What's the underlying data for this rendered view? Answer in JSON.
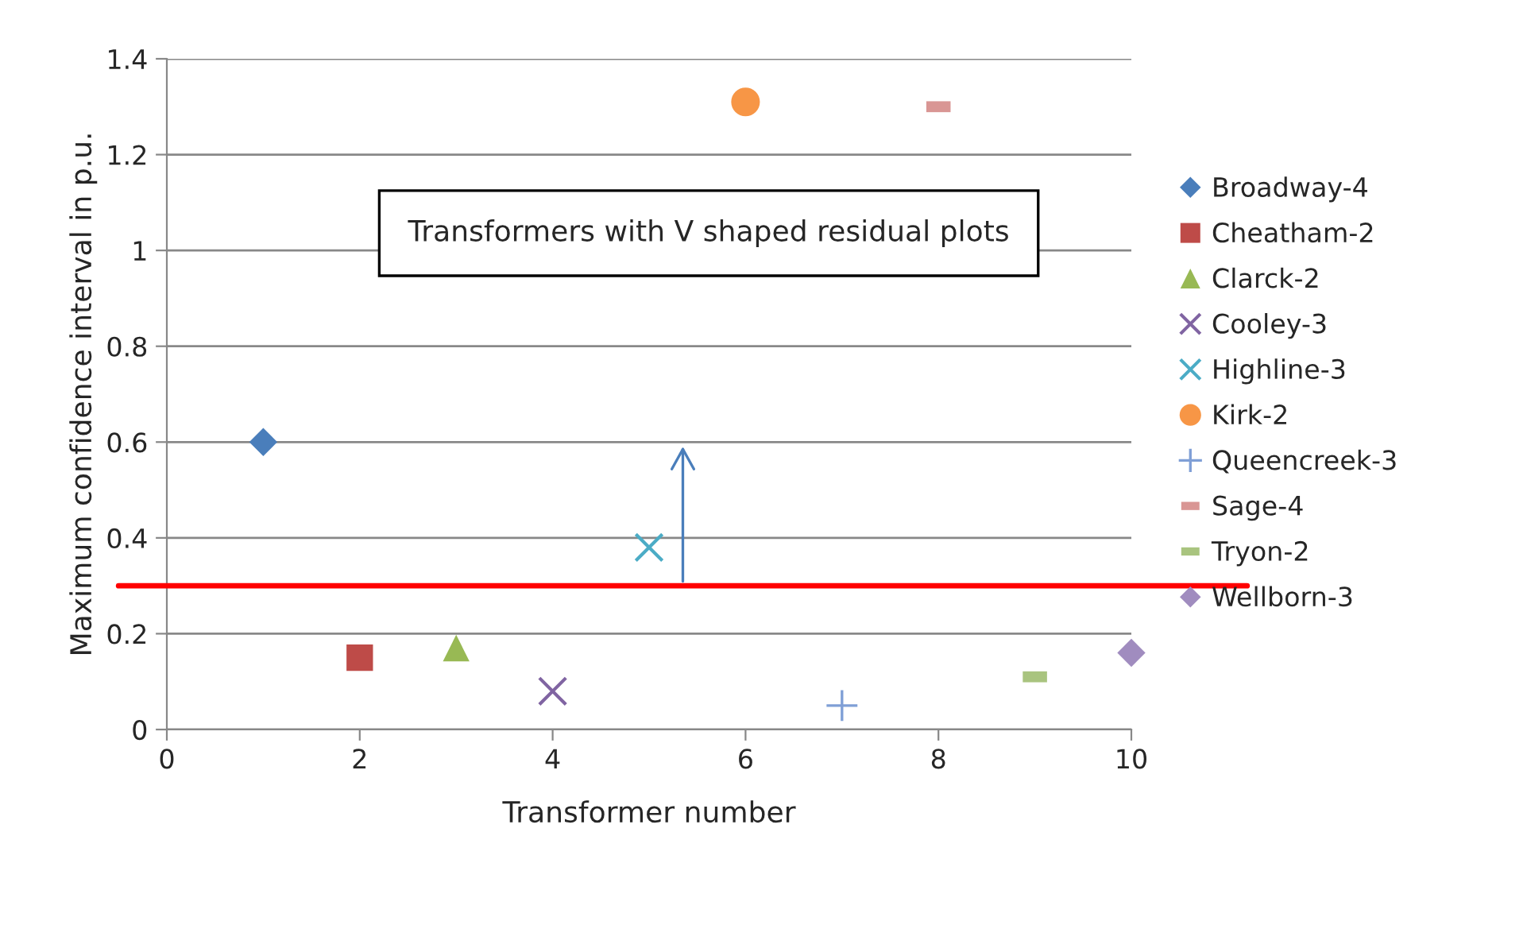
{
  "chart_data": {
    "type": "scatter",
    "xlabel": "Transformer number",
    "ylabel": "Maximum confidence interval in p.u.",
    "series": [
      {
        "name": "Broadway-4",
        "color": "#4a7ebb",
        "marker": "diamond",
        "x": [
          1
        ],
        "values": [
          0.6
        ]
      },
      {
        "name": "Cheatham-2",
        "color": "#be4b48",
        "marker": "square",
        "x": [
          2
        ],
        "values": [
          0.15
        ]
      },
      {
        "name": "Clarck-2",
        "color": "#98b954",
        "marker": "triangle",
        "x": [
          3
        ],
        "values": [
          0.17
        ]
      },
      {
        "name": "Cooley-3",
        "color": "#8064a2",
        "marker": "cross",
        "x": [
          4
        ],
        "values": [
          0.08
        ]
      },
      {
        "name": "Highline-3",
        "color": "#4bacc6",
        "marker": "cross",
        "x": [
          5
        ],
        "values": [
          0.38
        ]
      },
      {
        "name": "Kirk-2",
        "color": "#f79646",
        "marker": "circle",
        "x": [
          6
        ],
        "values": [
          1.31
        ]
      },
      {
        "name": "Queencreek-3",
        "color": "#7f9fd6",
        "marker": "plus",
        "x": [
          7
        ],
        "values": [
          0.05
        ]
      },
      {
        "name": "Sage-4",
        "color": "#d99694",
        "x": [
          8
        ],
        "values": [
          1.3
        ]
      },
      {
        "name": "Tryon-2",
        "color": "#a9c47f",
        "x": [
          9
        ],
        "values": [
          0.11
        ]
      },
      {
        "name": "Wellborn-3",
        "color": "#a08cbf",
        "marker": "diamond",
        "x": [
          10
        ],
        "values": [
          0.16
        ]
      }
    ],
    "xlim": [
      0,
      10
    ],
    "ylim": [
      0,
      1.4
    ],
    "xticks": [
      0,
      2,
      4,
      6,
      8,
      10
    ],
    "yticks": [
      0,
      {
        "value": 0.2,
        "label": "0.2"
      },
      {
        "value": 0.4,
        "label": "0.4"
      },
      {
        "value": 0.6,
        "label": "0.6"
      },
      {
        "value": 0.8,
        "label": "0.8"
      },
      1,
      {
        "value": 1.2,
        "label": "1.2"
      },
      {
        "value": 1.4,
        "label": "1.4"
      }
    ],
    "ref_lines": [
      {
        "axis": "y",
        "value": 0.3,
        "color": "#ff0000"
      }
    ],
    "annotations": [
      "Transformers with V shaped residual plots"
    ],
    "grid": "y",
    "legend": "right"
  }
}
